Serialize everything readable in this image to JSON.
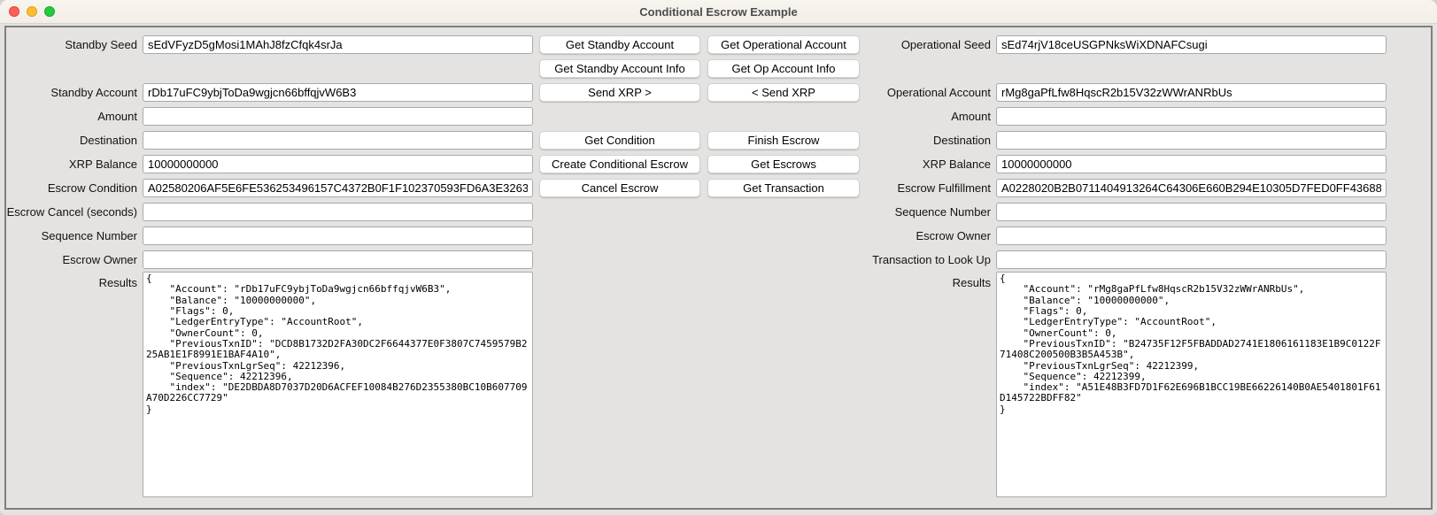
{
  "window": {
    "title": "Conditional Escrow Example",
    "traffic_light_colors": {
      "close": "#ff5f57",
      "minimize": "#febc2e",
      "zoom": "#28c840"
    }
  },
  "left": {
    "fields": [
      {
        "label": "Standby Seed",
        "value": "sEdVFyzD5gMosi1MAhJ8fzCfqk4srJa"
      },
      {
        "label": "Standby Account",
        "value": "rDb17uFC9ybjToDa9wgjcn66bffqjvW6B3"
      },
      {
        "label": "Amount",
        "value": ""
      },
      {
        "label": "Destination",
        "value": ""
      },
      {
        "label": "XRP Balance",
        "value": "10000000000"
      },
      {
        "label": "Escrow Condition",
        "value": "A02580206AF5E6FE536253496157C4372B0F1F102370593FD6A3E3263"
      },
      {
        "label": "Escrow Cancel (seconds)",
        "value": ""
      },
      {
        "label": "Sequence Number",
        "value": ""
      },
      {
        "label": "Escrow Owner",
        "value": ""
      }
    ],
    "results": {
      "label": "Results",
      "text": "{\n    \"Account\": \"rDb17uFC9ybjToDa9wgjcn66bffqjvW6B3\",\n    \"Balance\": \"10000000000\",\n    \"Flags\": 0,\n    \"LedgerEntryType\": \"AccountRoot\",\n    \"OwnerCount\": 0,\n    \"PreviousTxnID\": \"DCD8B1732D2FA30DC2F6644377E0F3807C7459579B225AB1E1F8991E1BAF4A10\",\n    \"PreviousTxnLgrSeq\": 42212396,\n    \"Sequence\": 42212396,\n    \"index\": \"DE2DBDA8D7037D20D6ACFEF10084B276D2355380BC10B607709A70D226CC7729\"\n}"
    }
  },
  "middle": {
    "col1": [
      "Get Standby Account",
      "Get Standby Account Info",
      "Send XRP >",
      "Get Condition",
      "Create Conditional Escrow",
      "Cancel Escrow"
    ],
    "col2": [
      "Get Operational Account",
      "Get Op Account Info",
      "< Send XRP",
      "Finish Escrow",
      "Get Escrows",
      "Get Transaction"
    ]
  },
  "right": {
    "fields": [
      {
        "label": "Operational Seed",
        "value": "sEd74rjV18ceUSGPNksWiXDNAFCsugi"
      },
      {
        "label": "Operational Account",
        "value": "rMg8gaPfLfw8HqscR2b15V32zWWrANRbUs"
      },
      {
        "label": "Amount",
        "value": ""
      },
      {
        "label": "Destination",
        "value": ""
      },
      {
        "label": "XRP Balance",
        "value": "10000000000"
      },
      {
        "label": "Escrow Fulfillment",
        "value": "A0228020B2B0711404913264C64306E660B294E10305D7FED0FF43688"
      },
      {
        "label": "Sequence Number",
        "value": ""
      },
      {
        "label": "Escrow Owner",
        "value": ""
      },
      {
        "label": "Transaction to Look Up",
        "value": ""
      }
    ],
    "results": {
      "label": "Results",
      "text": "{\n    \"Account\": \"rMg8gaPfLfw8HqscR2b15V32zWWrANRbUs\",\n    \"Balance\": \"10000000000\",\n    \"Flags\": 0,\n    \"LedgerEntryType\": \"AccountRoot\",\n    \"OwnerCount\": 0,\n    \"PreviousTxnID\": \"B24735F12F5FBADDAD2741E1806161183E1B9C0122F71408C200500B3B5A453B\",\n    \"PreviousTxnLgrSeq\": 42212399,\n    \"Sequence\": 42212399,\n    \"index\": \"A51E48B3FD7D1F62E696B1BCC19BE66226140B0AE5401801F61D145722BDFF82\"\n}"
    }
  }
}
